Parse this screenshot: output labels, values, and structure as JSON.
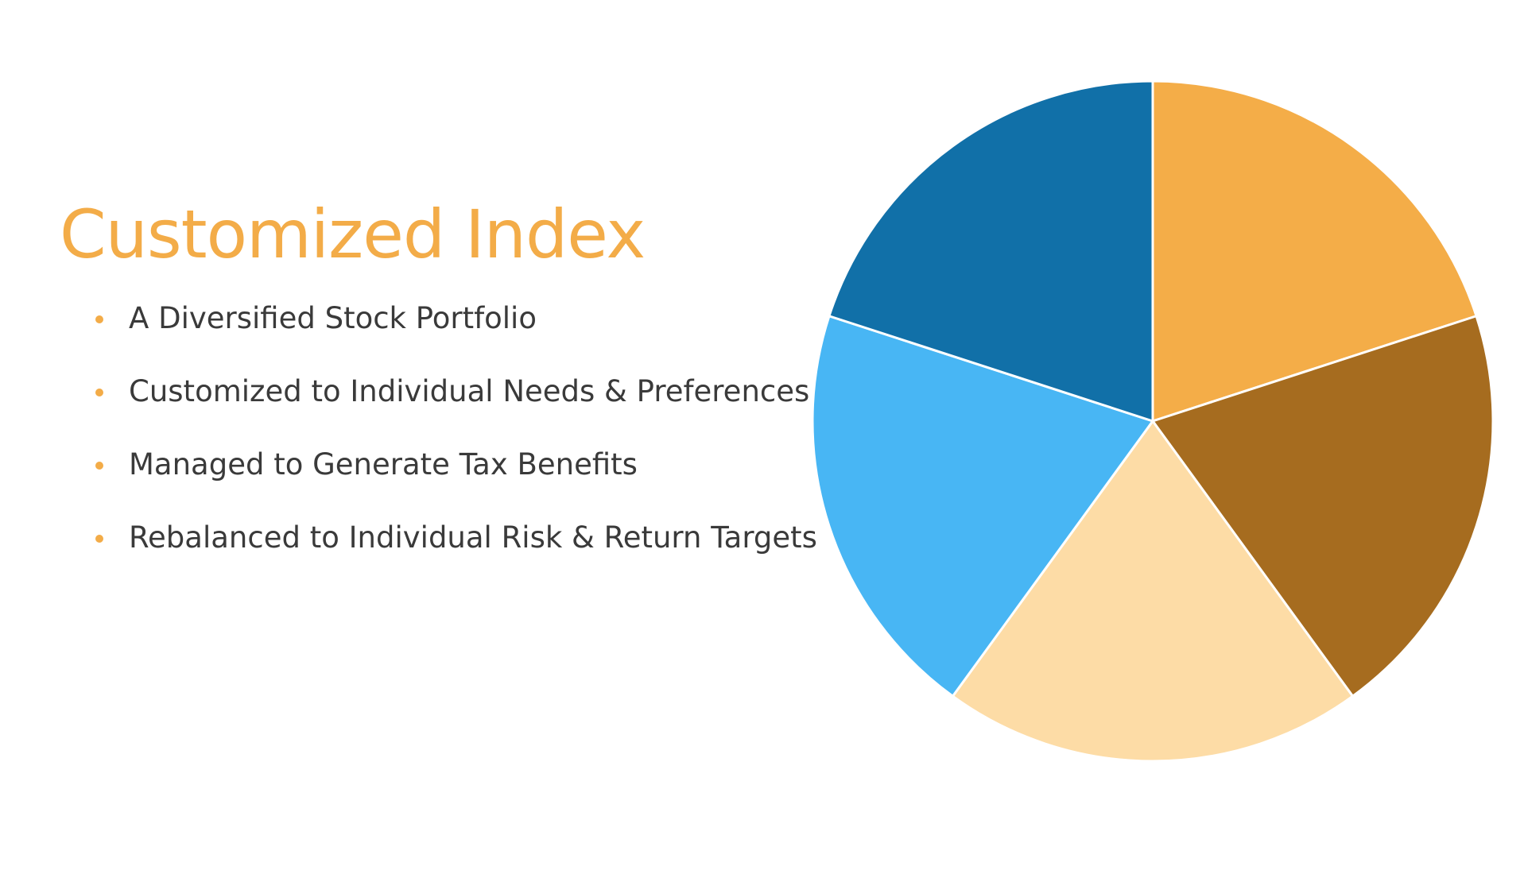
{
  "title": "Customized Index",
  "bullets": [
    "A Diversified Stock Portfolio",
    "Customized to Individual Needs & Preferences",
    "Managed to Generate Tax Benefits",
    "Rebalanced to Individual Risk & Return Targets"
  ],
  "colors": {
    "accent": "#f3ac48",
    "text": "#3a3a3a",
    "slice_border": "#ffffff"
  },
  "chart_data": {
    "type": "pie",
    "categories": [
      "",
      "",
      "",
      "",
      ""
    ],
    "values": [
      20,
      20,
      20,
      20,
      20
    ],
    "colors": [
      "#f4ad48",
      "#a66c1f",
      "#fddca6",
      "#48b6f4",
      "#1170a8"
    ],
    "start_angle_deg": 0,
    "direction": "clockwise",
    "title": "",
    "legend": "none"
  }
}
